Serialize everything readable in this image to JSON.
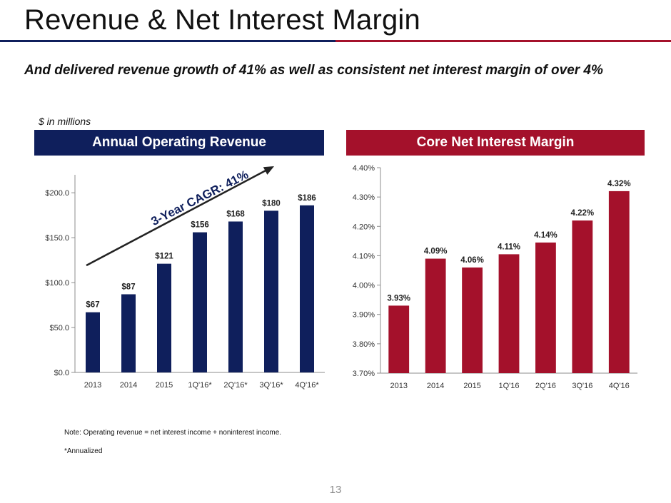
{
  "slide": {
    "title": "Revenue & Net Interest Margin",
    "subtitle": "And delivered revenue growth of 41% as well as consistent net interest margin of over 4%",
    "unit_label": "$ in millions",
    "page_number": "13",
    "note_1": "Note: Operating revenue = net interest income + noninterest income.",
    "note_2": "*Annualized",
    "colors": {
      "navy": "#0f1f5c",
      "red": "#a4112b"
    }
  },
  "left_panel": {
    "header": "Annual Operating Revenue",
    "annotation": "3-Year CAGR: 41%"
  },
  "right_panel": {
    "header": "Core Net Interest Margin"
  },
  "chart_data": [
    {
      "type": "bar",
      "title": "Annual Operating Revenue",
      "categories": [
        "2013",
        "2014",
        "2015",
        "1Q'16*",
        "2Q'16*",
        "3Q'16*",
        "4Q'16*"
      ],
      "values": [
        67,
        87,
        121,
        156,
        168,
        180,
        186
      ],
      "data_labels": [
        "$67",
        "$87",
        "$121",
        "$156",
        "$168",
        "$180",
        "$186"
      ],
      "ylim": [
        0,
        220
      ],
      "yticks": [
        0,
        50,
        100,
        150,
        200
      ],
      "ytick_labels": [
        "$0.0",
        "$50.0",
        "$100.0",
        "$150.0",
        "$200.0"
      ],
      "ylabel": "$ in millions",
      "color": "#0f1f5c"
    },
    {
      "type": "bar",
      "title": "Core Net Interest Margin",
      "categories": [
        "2013",
        "2014",
        "2015",
        "1Q'16",
        "2Q'16",
        "3Q'16",
        "4Q'16"
      ],
      "values": [
        3.93,
        4.09,
        4.06,
        4.105,
        4.145,
        4.22,
        4.32
      ],
      "data_labels": [
        "3.93%",
        "4.09%",
        "4.06%",
        "4.11%",
        "4.14%",
        "4.22%",
        "4.32%"
      ],
      "ylim": [
        3.7,
        4.4
      ],
      "yticks": [
        3.7,
        3.8,
        3.9,
        4.0,
        4.1,
        4.2,
        4.3,
        4.4
      ],
      "ytick_labels": [
        "3.70%",
        "3.80%",
        "3.90%",
        "4.00%",
        "4.10%",
        "4.20%",
        "4.30%",
        "4.40%"
      ],
      "color": "#a4112b"
    }
  ]
}
